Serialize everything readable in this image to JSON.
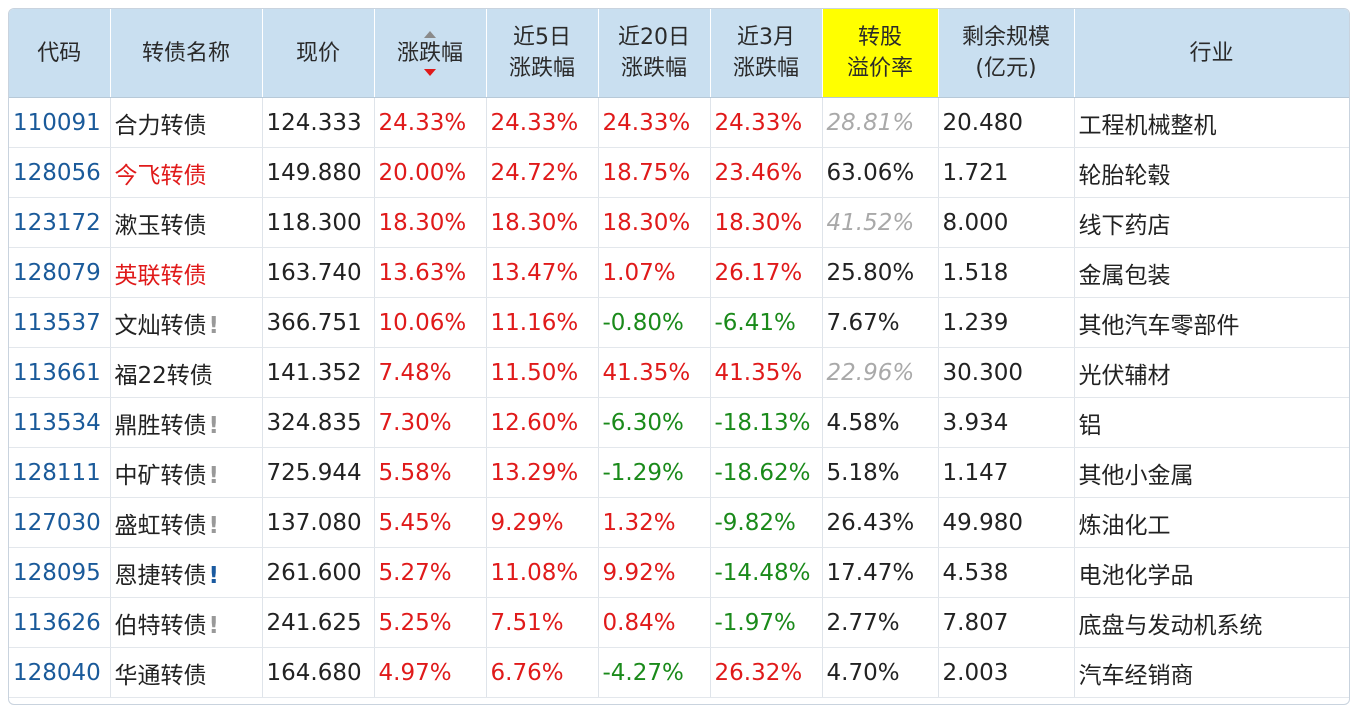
{
  "colors": {
    "header_bg": "#c9dff0",
    "highlight": "#ffff00",
    "code": "#1a5a9a",
    "up": "#e01a1a",
    "down": "#1a8a1a",
    "muted": "#a9a9a9"
  },
  "headers": {
    "code": "代码",
    "name": "转债名称",
    "price": "现价",
    "change": "涨跌幅",
    "change5d_1": "近5日",
    "change5d_2": "涨跌幅",
    "change20d_1": "近20日",
    "change20d_2": "涨跌幅",
    "change3m_1": "近3月",
    "change3m_2": "涨跌幅",
    "premium_1": "转股",
    "premium_2": "溢价率",
    "remaining_1": "剩余规模",
    "remaining_2": "(亿元)",
    "industry": "行业"
  },
  "sort": {
    "column": "涨跌幅",
    "direction": "desc"
  },
  "rows": [
    {
      "code": "110091",
      "name": "合力转债",
      "name_red": false,
      "alert": "",
      "price": "124.333",
      "chg": "24.33%",
      "chg5": "24.33%",
      "chg20": "24.33%",
      "chg3m": "24.33%",
      "premium": "28.81%",
      "premium_muted": true,
      "remaining": "20.480",
      "industry": "工程机械整机"
    },
    {
      "code": "128056",
      "name": "今飞转债",
      "name_red": true,
      "alert": "",
      "price": "149.880",
      "chg": "20.00%",
      "chg5": "24.72%",
      "chg20": "18.75%",
      "chg3m": "23.46%",
      "premium": "63.06%",
      "premium_muted": false,
      "remaining": "1.721",
      "industry": "轮胎轮毂"
    },
    {
      "code": "123172",
      "name": "漱玉转债",
      "name_red": false,
      "alert": "",
      "price": "118.300",
      "chg": "18.30%",
      "chg5": "18.30%",
      "chg20": "18.30%",
      "chg3m": "18.30%",
      "premium": "41.52%",
      "premium_muted": true,
      "remaining": "8.000",
      "industry": "线下药店"
    },
    {
      "code": "128079",
      "name": "英联转债",
      "name_red": true,
      "alert": "",
      "price": "163.740",
      "chg": "13.63%",
      "chg5": "13.47%",
      "chg20": "1.07%",
      "chg3m": "26.17%",
      "premium": "25.80%",
      "premium_muted": false,
      "remaining": "1.518",
      "industry": "金属包装"
    },
    {
      "code": "113537",
      "name": "文灿转债",
      "name_red": false,
      "alert": "grey",
      "price": "366.751",
      "chg": "10.06%",
      "chg5": "11.16%",
      "chg20": "-0.80%",
      "chg3m": "-6.41%",
      "premium": "7.67%",
      "premium_muted": false,
      "remaining": "1.239",
      "industry": "其他汽车零部件"
    },
    {
      "code": "113661",
      "name": "福22转债",
      "name_red": false,
      "alert": "",
      "price": "141.352",
      "chg": "7.48%",
      "chg5": "11.50%",
      "chg20": "41.35%",
      "chg3m": "41.35%",
      "premium": "22.96%",
      "premium_muted": true,
      "remaining": "30.300",
      "industry": "光伏辅材"
    },
    {
      "code": "113534",
      "name": "鼎胜转债",
      "name_red": false,
      "alert": "grey",
      "price": "324.835",
      "chg": "7.30%",
      "chg5": "12.60%",
      "chg20": "-6.30%",
      "chg3m": "-18.13%",
      "premium": "4.58%",
      "premium_muted": false,
      "remaining": "3.934",
      "industry": "铝"
    },
    {
      "code": "128111",
      "name": "中矿转债",
      "name_red": false,
      "alert": "grey",
      "price": "725.944",
      "chg": "5.58%",
      "chg5": "13.29%",
      "chg20": "-1.29%",
      "chg3m": "-18.62%",
      "premium": "5.18%",
      "premium_muted": false,
      "remaining": "1.147",
      "industry": "其他小金属"
    },
    {
      "code": "127030",
      "name": "盛虹转债",
      "name_red": false,
      "alert": "grey",
      "price": "137.080",
      "chg": "5.45%",
      "chg5": "9.29%",
      "chg20": "1.32%",
      "chg3m": "-9.82%",
      "premium": "26.43%",
      "premium_muted": false,
      "remaining": "49.980",
      "industry": "炼油化工"
    },
    {
      "code": "128095",
      "name": "恩捷转债",
      "name_red": false,
      "alert": "blue",
      "price": "261.600",
      "chg": "5.27%",
      "chg5": "11.08%",
      "chg20": "9.92%",
      "chg3m": "-14.48%",
      "premium": "17.47%",
      "premium_muted": false,
      "remaining": "4.538",
      "industry": "电池化学品"
    },
    {
      "code": "113626",
      "name": "伯特转债",
      "name_red": false,
      "alert": "grey",
      "price": "241.625",
      "chg": "5.25%",
      "chg5": "7.51%",
      "chg20": "0.84%",
      "chg3m": "-1.97%",
      "premium": "2.77%",
      "premium_muted": false,
      "remaining": "7.807",
      "industry": "底盘与发动机系统"
    },
    {
      "code": "128040",
      "name": "华通转债",
      "name_red": false,
      "alert": "",
      "price": "164.680",
      "chg": "4.97%",
      "chg5": "6.76%",
      "chg20": "-4.27%",
      "chg3m": "26.32%",
      "premium": "4.70%",
      "premium_muted": false,
      "remaining": "2.003",
      "industry": "汽车经销商"
    }
  ]
}
